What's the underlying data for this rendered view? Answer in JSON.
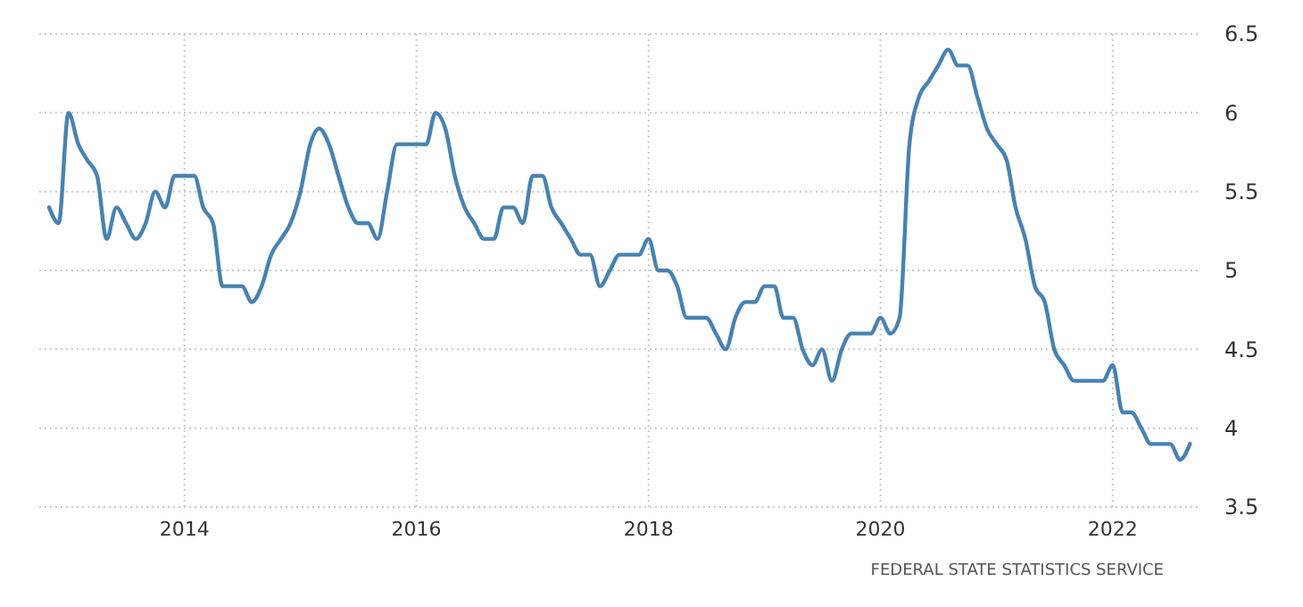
{
  "chart_data": {
    "type": "line",
    "x": [
      "2012-11",
      "2012-12",
      "2013-01",
      "2013-02",
      "2013-03",
      "2013-04",
      "2013-05",
      "2013-06",
      "2013-07",
      "2013-08",
      "2013-09",
      "2013-10",
      "2013-11",
      "2013-12",
      "2014-01",
      "2014-02",
      "2014-03",
      "2014-04",
      "2014-05",
      "2014-06",
      "2014-07",
      "2014-08",
      "2014-09",
      "2014-10",
      "2014-11",
      "2014-12",
      "2015-01",
      "2015-02",
      "2015-03",
      "2015-04",
      "2015-05",
      "2015-06",
      "2015-07",
      "2015-08",
      "2015-09",
      "2015-10",
      "2015-11",
      "2015-12",
      "2016-01",
      "2016-02",
      "2016-03",
      "2016-04",
      "2016-05",
      "2016-06",
      "2016-07",
      "2016-08",
      "2016-09",
      "2016-10",
      "2016-11",
      "2016-12",
      "2017-01",
      "2017-02",
      "2017-03",
      "2017-04",
      "2017-05",
      "2017-06",
      "2017-07",
      "2017-08",
      "2017-09",
      "2017-10",
      "2017-11",
      "2017-12",
      "2018-01",
      "2018-02",
      "2018-03",
      "2018-04",
      "2018-05",
      "2018-06",
      "2018-07",
      "2018-08",
      "2018-09",
      "2018-10",
      "2018-11",
      "2018-12",
      "2019-01",
      "2019-02",
      "2019-03",
      "2019-04",
      "2019-05",
      "2019-06",
      "2019-07",
      "2019-08",
      "2019-09",
      "2019-10",
      "2019-11",
      "2019-12",
      "2020-01",
      "2020-02",
      "2020-03",
      "2020-04",
      "2020-05",
      "2020-06",
      "2020-07",
      "2020-08",
      "2020-09",
      "2020-10",
      "2020-11",
      "2020-12",
      "2021-01",
      "2021-02",
      "2021-03",
      "2021-04",
      "2021-05",
      "2021-06",
      "2021-07",
      "2021-08",
      "2021-09",
      "2021-10",
      "2021-11",
      "2021-12",
      "2022-01",
      "2022-02",
      "2022-03",
      "2022-04",
      "2022-05",
      "2022-06",
      "2022-07",
      "2022-08",
      "2022-09"
    ],
    "series": [
      {
        "color": "#4682b4",
        "values": [
          5.4,
          5.3,
          6.0,
          5.8,
          5.7,
          5.6,
          5.2,
          5.4,
          5.3,
          5.2,
          5.3,
          5.5,
          5.4,
          5.6,
          5.6,
          5.6,
          5.4,
          5.3,
          4.9,
          4.9,
          4.9,
          4.8,
          4.9,
          5.1,
          5.2,
          5.3,
          5.5,
          5.8,
          5.9,
          5.8,
          5.6,
          5.4,
          5.3,
          5.3,
          5.2,
          5.5,
          5.8,
          5.8,
          5.8,
          5.8,
          6.0,
          5.9,
          5.6,
          5.4,
          5.3,
          5.2,
          5.2,
          5.4,
          5.4,
          5.3,
          5.6,
          5.6,
          5.4,
          5.3,
          5.2,
          5.1,
          5.1,
          4.9,
          5.0,
          5.1,
          5.1,
          5.1,
          5.2,
          5.0,
          5.0,
          4.9,
          4.7,
          4.7,
          4.7,
          4.6,
          4.5,
          4.7,
          4.8,
          4.8,
          4.9,
          4.9,
          4.7,
          4.7,
          4.5,
          4.4,
          4.5,
          4.3,
          4.5,
          4.6,
          4.6,
          4.6,
          4.7,
          4.6,
          4.7,
          5.8,
          6.1,
          6.2,
          6.3,
          6.4,
          6.3,
          6.3,
          6.1,
          5.9,
          5.8,
          5.7,
          5.4,
          5.2,
          4.9,
          4.8,
          4.5,
          4.4,
          4.3,
          4.3,
          4.3,
          4.3,
          4.4,
          4.1,
          4.1,
          4.0,
          3.9,
          3.9,
          3.9,
          3.8,
          3.9
        ]
      }
    ],
    "xlim": [
      "2012-10",
      "2022-10"
    ],
    "xticks": [
      {
        "value": "2014",
        "label": "2014"
      },
      {
        "value": "2016",
        "label": "2016"
      },
      {
        "value": "2018",
        "label": "2018"
      },
      {
        "value": "2020",
        "label": "2020"
      },
      {
        "value": "2022",
        "label": "2022"
      }
    ],
    "ylim": [
      3.5,
      6.5
    ],
    "yticks": [
      3.5,
      4,
      4.5,
      5,
      5.5,
      6,
      6.5
    ],
    "grid": true,
    "line_style": "solid",
    "marker": "none",
    "annotations": [
      "FEDERAL STATE STATISTICS SERVICE"
    ]
  }
}
